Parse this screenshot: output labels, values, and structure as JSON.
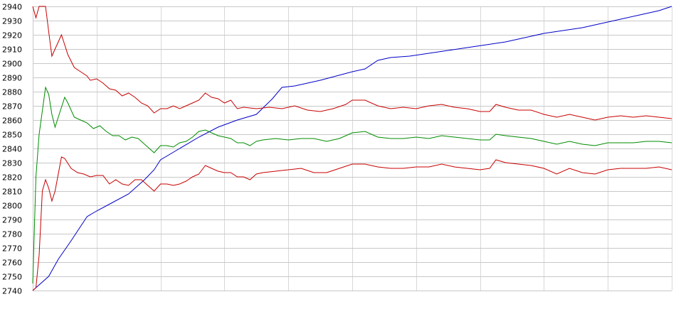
{
  "chart_data": {
    "type": "line",
    "title": "",
    "xlabel": "",
    "ylabel": "",
    "ylim": [
      2740,
      2940
    ],
    "yticks": [
      2740,
      2750,
      2760,
      2770,
      2780,
      2790,
      2800,
      2810,
      2820,
      2830,
      2840,
      2850,
      2860,
      2870,
      2880,
      2890,
      2900,
      2910,
      2920,
      2930,
      2940
    ],
    "xlim": [
      0,
      200
    ],
    "x_grid_step": 20,
    "grid": true,
    "legend": "none",
    "series": [
      {
        "color": "#0000c8",
        "points": [
          [
            0,
            2740
          ],
          [
            5,
            2750
          ],
          [
            8,
            2762
          ],
          [
            12,
            2775
          ],
          [
            17,
            2792
          ],
          [
            20,
            2796
          ],
          [
            25,
            2802
          ],
          [
            30,
            2808
          ],
          [
            35,
            2818
          ],
          [
            38,
            2825
          ],
          [
            40,
            2832
          ],
          [
            46,
            2840
          ],
          [
            52,
            2848
          ],
          [
            58,
            2855
          ],
          [
            64,
            2860
          ],
          [
            70,
            2864
          ],
          [
            75,
            2875
          ],
          [
            78,
            2883
          ],
          [
            82,
            2884
          ],
          [
            86,
            2886
          ],
          [
            90,
            2888
          ],
          [
            95,
            2891
          ],
          [
            100,
            2894
          ],
          [
            104,
            2896
          ],
          [
            108,
            2902
          ],
          [
            112,
            2904
          ],
          [
            118,
            2905
          ],
          [
            124,
            2907
          ],
          [
            130,
            2909
          ],
          [
            136,
            2911
          ],
          [
            142,
            2913
          ],
          [
            148,
            2915
          ],
          [
            154,
            2918
          ],
          [
            160,
            2921
          ],
          [
            166,
            2923
          ],
          [
            172,
            2925
          ],
          [
            178,
            2928
          ],
          [
            184,
            2931
          ],
          [
            190,
            2934
          ],
          [
            196,
            2937
          ],
          [
            200,
            2940
          ]
        ]
      },
      {
        "color": "#c80000",
        "points": [
          [
            0,
            2940
          ],
          [
            1,
            2932
          ],
          [
            2,
            2940
          ],
          [
            4,
            2940
          ],
          [
            5,
            2922
          ],
          [
            6,
            2905
          ],
          [
            8,
            2915
          ],
          [
            9,
            2920
          ],
          [
            11,
            2906
          ],
          [
            13,
            2897
          ],
          [
            15,
            2894
          ],
          [
            17,
            2891
          ],
          [
            18,
            2888
          ],
          [
            20,
            2889
          ],
          [
            22,
            2886
          ],
          [
            24,
            2882
          ],
          [
            26,
            2881
          ],
          [
            28,
            2877
          ],
          [
            30,
            2879
          ],
          [
            32,
            2876
          ],
          [
            34,
            2872
          ],
          [
            36,
            2870
          ],
          [
            38,
            2865
          ],
          [
            40,
            2868
          ],
          [
            42,
            2868
          ],
          [
            44,
            2870
          ],
          [
            46,
            2868
          ],
          [
            48,
            2870
          ],
          [
            50,
            2872
          ],
          [
            52,
            2874
          ],
          [
            54,
            2879
          ],
          [
            56,
            2876
          ],
          [
            58,
            2875
          ],
          [
            60,
            2872
          ],
          [
            62,
            2874
          ],
          [
            64,
            2868
          ],
          [
            66,
            2869
          ],
          [
            70,
            2868
          ],
          [
            74,
            2869
          ],
          [
            78,
            2868
          ],
          [
            82,
            2870
          ],
          [
            86,
            2867
          ],
          [
            90,
            2866
          ],
          [
            94,
            2868
          ],
          [
            98,
            2871
          ],
          [
            100,
            2874
          ],
          [
            104,
            2874
          ],
          [
            108,
            2870
          ],
          [
            112,
            2868
          ],
          [
            116,
            2869
          ],
          [
            120,
            2868
          ],
          [
            124,
            2870
          ],
          [
            128,
            2871
          ],
          [
            132,
            2869
          ],
          [
            136,
            2868
          ],
          [
            140,
            2866
          ],
          [
            143,
            2866
          ],
          [
            145,
            2871
          ],
          [
            148,
            2869
          ],
          [
            152,
            2867
          ],
          [
            156,
            2867
          ],
          [
            160,
            2864
          ],
          [
            164,
            2862
          ],
          [
            168,
            2864
          ],
          [
            172,
            2862
          ],
          [
            176,
            2860
          ],
          [
            180,
            2862
          ],
          [
            184,
            2863
          ],
          [
            188,
            2862
          ],
          [
            192,
            2863
          ],
          [
            196,
            2862
          ],
          [
            200,
            2861
          ]
        ]
      },
      {
        "color": "#008c00",
        "points": [
          [
            0,
            2745
          ],
          [
            1,
            2820
          ],
          [
            2,
            2850
          ],
          [
            4,
            2883
          ],
          [
            5,
            2878
          ],
          [
            6,
            2864
          ],
          [
            7,
            2855
          ],
          [
            8,
            2862
          ],
          [
            10,
            2876
          ],
          [
            11,
            2872
          ],
          [
            13,
            2862
          ],
          [
            15,
            2860
          ],
          [
            17,
            2858
          ],
          [
            19,
            2854
          ],
          [
            21,
            2856
          ],
          [
            23,
            2852
          ],
          [
            25,
            2849
          ],
          [
            27,
            2849
          ],
          [
            29,
            2846
          ],
          [
            31,
            2848
          ],
          [
            33,
            2847
          ],
          [
            35,
            2843
          ],
          [
            37,
            2839
          ],
          [
            38,
            2837
          ],
          [
            40,
            2842
          ],
          [
            42,
            2842
          ],
          [
            44,
            2841
          ],
          [
            46,
            2844
          ],
          [
            48,
            2845
          ],
          [
            50,
            2848
          ],
          [
            52,
            2852
          ],
          [
            54,
            2853
          ],
          [
            56,
            2851
          ],
          [
            58,
            2849
          ],
          [
            60,
            2848
          ],
          [
            62,
            2847
          ],
          [
            64,
            2844
          ],
          [
            66,
            2844
          ],
          [
            68,
            2842
          ],
          [
            70,
            2845
          ],
          [
            72,
            2846
          ],
          [
            76,
            2847
          ],
          [
            80,
            2846
          ],
          [
            84,
            2847
          ],
          [
            88,
            2847
          ],
          [
            92,
            2845
          ],
          [
            96,
            2847
          ],
          [
            100,
            2851
          ],
          [
            104,
            2852
          ],
          [
            108,
            2848
          ],
          [
            112,
            2847
          ],
          [
            116,
            2847
          ],
          [
            120,
            2848
          ],
          [
            124,
            2847
          ],
          [
            128,
            2849
          ],
          [
            132,
            2848
          ],
          [
            136,
            2847
          ],
          [
            140,
            2846
          ],
          [
            143,
            2846
          ],
          [
            145,
            2850
          ],
          [
            148,
            2849
          ],
          [
            152,
            2848
          ],
          [
            156,
            2847
          ],
          [
            160,
            2845
          ],
          [
            164,
            2843
          ],
          [
            168,
            2845
          ],
          [
            172,
            2843
          ],
          [
            176,
            2842
          ],
          [
            180,
            2844
          ],
          [
            184,
            2844
          ],
          [
            188,
            2844
          ],
          [
            192,
            2845
          ],
          [
            196,
            2845
          ],
          [
            200,
            2844
          ]
        ]
      },
      {
        "color": "#c80000",
        "points": [
          [
            0,
            2740
          ],
          [
            1,
            2742
          ],
          [
            2,
            2765
          ],
          [
            3,
            2810
          ],
          [
            4,
            2818
          ],
          [
            5,
            2812
          ],
          [
            6,
            2803
          ],
          [
            7,
            2810
          ],
          [
            9,
            2834
          ],
          [
            10,
            2833
          ],
          [
            12,
            2826
          ],
          [
            14,
            2823
          ],
          [
            16,
            2822
          ],
          [
            18,
            2820
          ],
          [
            20,
            2821
          ],
          [
            22,
            2821
          ],
          [
            24,
            2815
          ],
          [
            26,
            2818
          ],
          [
            28,
            2815
          ],
          [
            30,
            2814
          ],
          [
            32,
            2818
          ],
          [
            34,
            2818
          ],
          [
            36,
            2814
          ],
          [
            38,
            2810
          ],
          [
            40,
            2815
          ],
          [
            42,
            2815
          ],
          [
            44,
            2814
          ],
          [
            46,
            2815
          ],
          [
            48,
            2817
          ],
          [
            50,
            2820
          ],
          [
            52,
            2822
          ],
          [
            54,
            2828
          ],
          [
            56,
            2826
          ],
          [
            58,
            2824
          ],
          [
            60,
            2823
          ],
          [
            62,
            2823
          ],
          [
            64,
            2820
          ],
          [
            66,
            2820
          ],
          [
            68,
            2818
          ],
          [
            70,
            2822
          ],
          [
            72,
            2823
          ],
          [
            76,
            2824
          ],
          [
            80,
            2825
          ],
          [
            84,
            2826
          ],
          [
            88,
            2823
          ],
          [
            92,
            2823
          ],
          [
            96,
            2826
          ],
          [
            100,
            2829
          ],
          [
            104,
            2829
          ],
          [
            108,
            2827
          ],
          [
            112,
            2826
          ],
          [
            116,
            2826
          ],
          [
            120,
            2827
          ],
          [
            124,
            2827
          ],
          [
            128,
            2829
          ],
          [
            132,
            2827
          ],
          [
            136,
            2826
          ],
          [
            140,
            2825
          ],
          [
            143,
            2826
          ],
          [
            145,
            2832
          ],
          [
            148,
            2830
          ],
          [
            152,
            2829
          ],
          [
            156,
            2828
          ],
          [
            160,
            2826
          ],
          [
            164,
            2822
          ],
          [
            168,
            2826
          ],
          [
            172,
            2823
          ],
          [
            176,
            2822
          ],
          [
            180,
            2825
          ],
          [
            184,
            2826
          ],
          [
            188,
            2826
          ],
          [
            192,
            2826
          ],
          [
            196,
            2827
          ],
          [
            200,
            2825
          ]
        ]
      }
    ]
  }
}
